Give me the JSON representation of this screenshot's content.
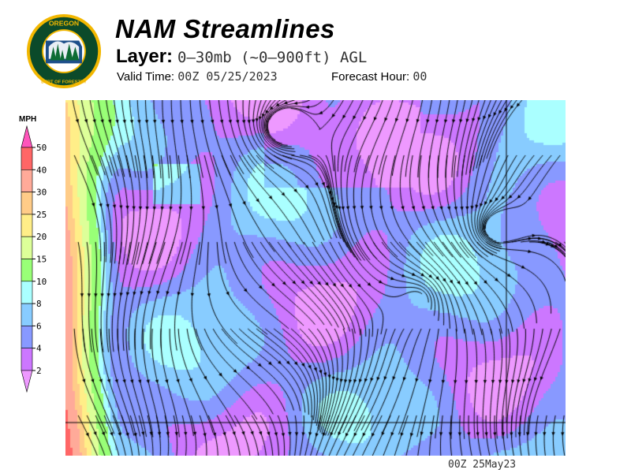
{
  "header": {
    "title": "NAM Streamlines",
    "layer_label": "Layer:",
    "layer_value": "0–30mb (~0–900ft) AGL",
    "valid_label": "Valid Time:",
    "valid_value": "00Z 05/25/2023",
    "forecast_label": "Forecast Hour:",
    "forecast_value": "00"
  },
  "logo": {
    "text_top": "OREGON",
    "text_bottom": "DEPARTMENT OF FORESTRY",
    "colors": {
      "ring": "#f2b700",
      "field": "#0b4a2a"
    }
  },
  "legend": {
    "unit": "MPH",
    "ticks": [
      "50",
      "40",
      "30",
      "25",
      "20",
      "15",
      "10",
      "8",
      "6",
      "4",
      "2"
    ],
    "colors": {
      "above": "#ff55bb",
      "bands": [
        "#ff6666",
        "#ffaa99",
        "#ffcc88",
        "#ffee88",
        "#ddff99",
        "#99ff77",
        "#aaffff",
        "#88ccff",
        "#8899ff",
        "#cc77ff"
      ],
      "below": "#ee99ff"
    }
  },
  "footer": {
    "stamp": "00Z 25May23"
  }
}
